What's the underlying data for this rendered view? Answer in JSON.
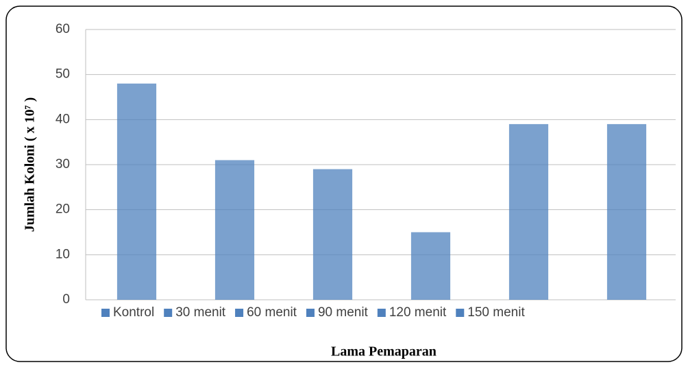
{
  "chart_data": {
    "type": "bar",
    "categories": [
      "Kontrol",
      "30 menit",
      "60 menit",
      "90 menit",
      "120 menit",
      "150 menit"
    ],
    "values": [
      48,
      31,
      29,
      15,
      39,
      39
    ],
    "color": "#4f81bd",
    "xlabel": "Lama Pemaparan",
    "ylabel": "Jumlah Koloni ( x 10⁷ )",
    "ylim": [
      0,
      60
    ],
    "yticks": [
      0,
      10,
      20,
      30,
      40,
      50,
      60
    ],
    "grid": true,
    "legend": "bottom"
  }
}
